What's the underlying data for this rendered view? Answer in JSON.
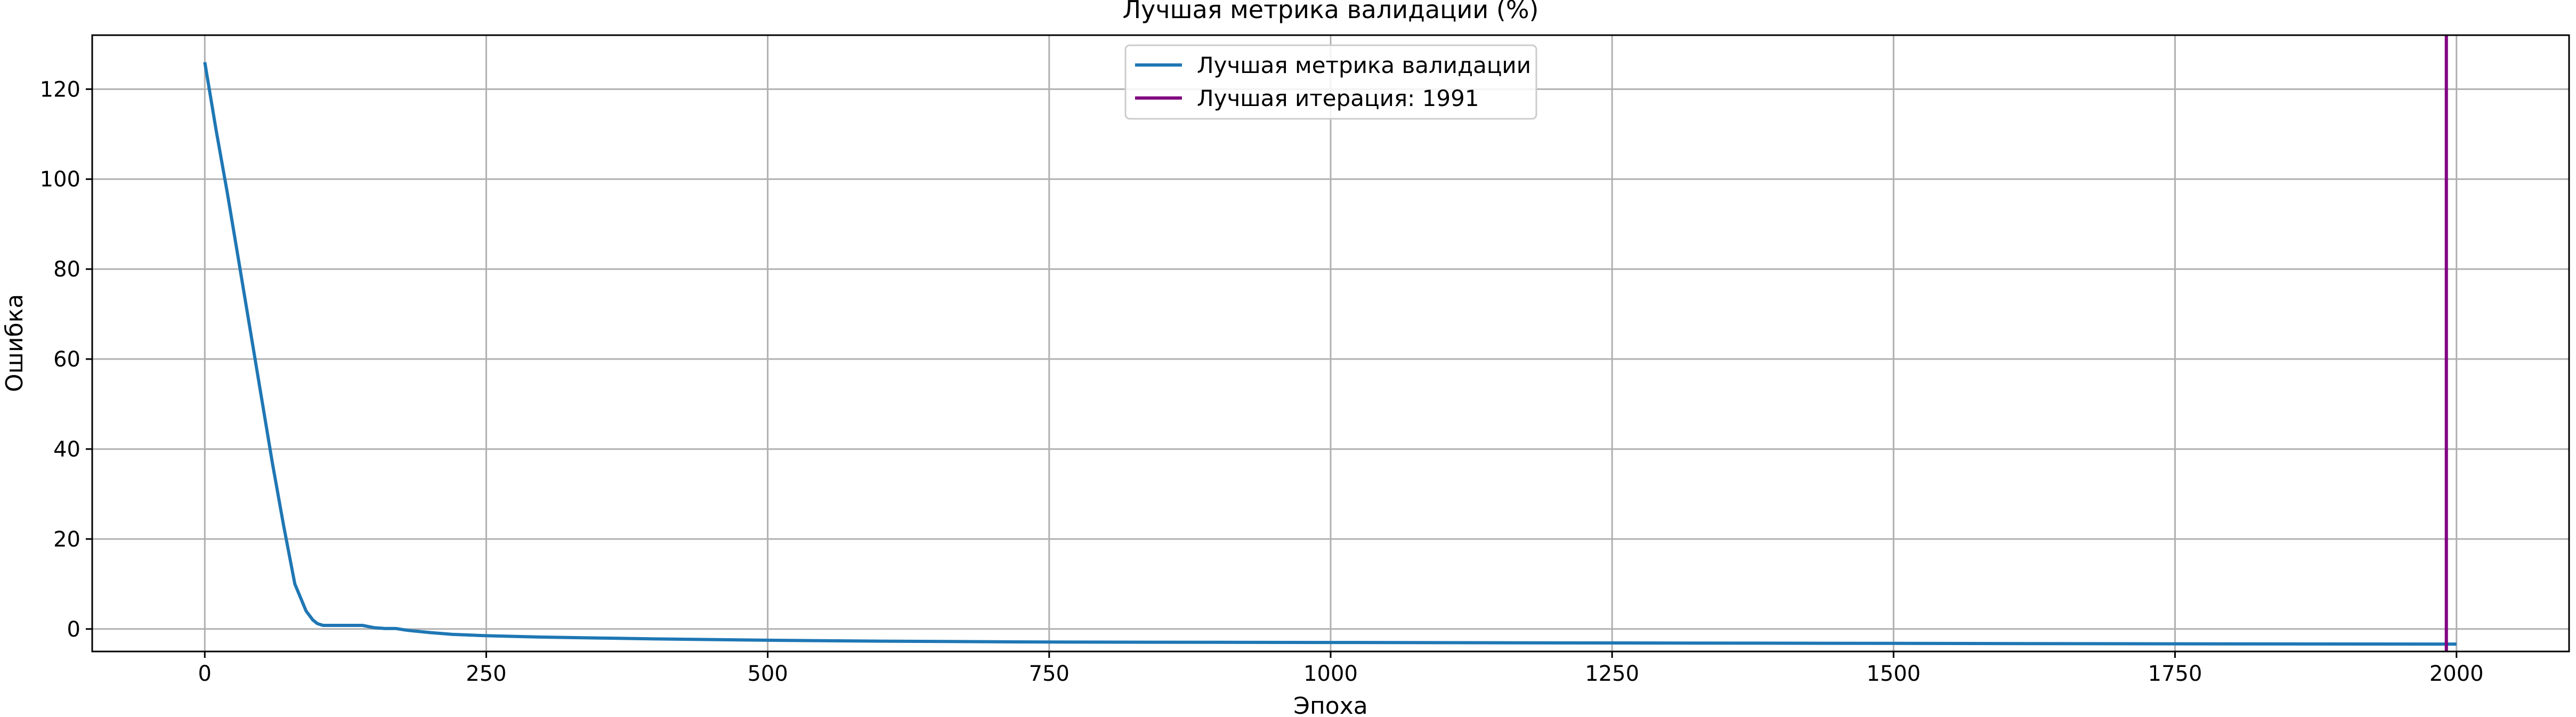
{
  "chart_data": {
    "type": "line",
    "title": "Лучшая метрика валидации (%)",
    "xlabel": "Эпоха",
    "ylabel": "Ошибка",
    "xlim": [
      -100,
      2100
    ],
    "ylim": [
      -5,
      132
    ],
    "xticks": [
      0,
      250,
      500,
      750,
      1000,
      1250,
      1500,
      1750,
      2000
    ],
    "yticks": [
      0,
      20,
      40,
      60,
      80,
      100,
      120
    ],
    "grid": true,
    "legend_position": "upper center",
    "colors": {
      "series": "#1f77b4",
      "best_line": "#800080",
      "grid": "#b0b0b0"
    },
    "series": [
      {
        "name": "Лучшая метрика валидации",
        "x": [
          0,
          10,
          20,
          30,
          40,
          50,
          60,
          70,
          80,
          90,
          96,
          100,
          105,
          110,
          120,
          140,
          150,
          160,
          170,
          180,
          200,
          220,
          250,
          300,
          350,
          400,
          500,
          600,
          750,
          1000,
          1250,
          1500,
          1750,
          1991,
          2000
        ],
        "y": [
          126,
          111,
          97,
          82,
          67,
          52,
          37,
          23,
          10,
          4,
          2,
          1.2,
          0.8,
          0.8,
          0.8,
          0.8,
          0.3,
          0.1,
          0.1,
          -0.3,
          -0.8,
          -1.2,
          -1.5,
          -1.8,
          -2.0,
          -2.2,
          -2.5,
          -2.7,
          -2.9,
          -3.0,
          -3.1,
          -3.2,
          -3.3,
          -3.35,
          -3.35
        ]
      }
    ],
    "vline": {
      "name": "Лучшая итерация: 1991",
      "x": 1991
    }
  }
}
